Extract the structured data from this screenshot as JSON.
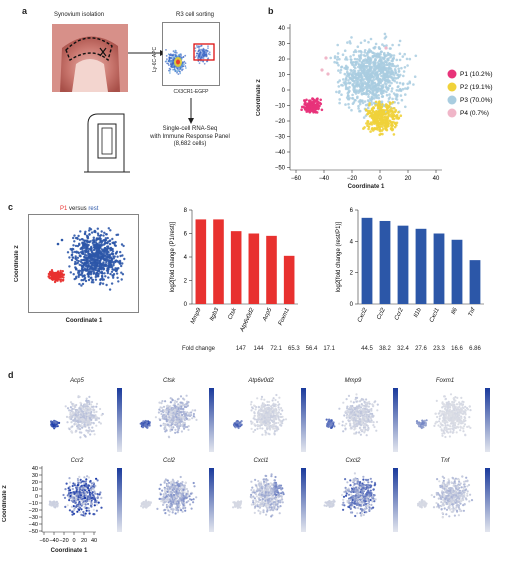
{
  "panels": {
    "a": {
      "letter": "a",
      "synovium_title": "Synovium isolation",
      "sorting_title": "R3 cell sorting",
      "y_axis_label": "Ly-6C-APC",
      "x_axis_label": "CX3CR1-EGFP",
      "seq_line1": "Single-cell RNA-Seq",
      "seq_line2": "with Immune Response Panel",
      "seq_line3": "(8,682 cells)"
    },
    "b": {
      "letter": "b",
      "xlabel": "Coordinate 1",
      "ylabel": "Coordinate 2",
      "x_ticks": [
        "−60",
        "−40",
        "−20",
        "0",
        "20",
        "40"
      ],
      "y_ticks": [
        "40",
        "30",
        "20",
        "10",
        "0",
        "−10",
        "−20",
        "−30",
        "−40",
        "−50"
      ],
      "legend": [
        {
          "label": "P1 (10.2%)",
          "color": "#e8337a"
        },
        {
          "label": "P2 (19.1%)",
          "color": "#f0d23a"
        },
        {
          "label": "P3 (70.0%)",
          "color": "#a9cde0"
        },
        {
          "label": "P4 (0.7%)",
          "color": "#f0b6c8"
        }
      ]
    },
    "c": {
      "letter": "c",
      "title_p1": "P1",
      "title_versus": " versus ",
      "title_rest": "rest",
      "xlabel": "Coordinate 1",
      "ylabel": "Coordinate 2",
      "fold_change_label": "Fold change",
      "left_ylabel": "log2[fold change (P1/rest)]",
      "right_ylabel": "log2[fold change (rest/P1)]"
    },
    "d": {
      "letter": "d",
      "genes_row1": [
        "Acp5",
        "Ctsk",
        "Atp6v0d2",
        "Mmp9",
        "Foxm1"
      ],
      "genes_row2": [
        "Ccr2",
        "Ccl2",
        "Cxcl1",
        "Cxcl2",
        "Tnf"
      ],
      "xlabel": "Coordinate 1",
      "ylabel": "Coordinate 2",
      "x_ticks": [
        "−60",
        "−40",
        "−20",
        "0",
        "20",
        "40"
      ],
      "y_ticks": [
        "40",
        "30",
        "20",
        "10",
        "0",
        "−10",
        "−20",
        "−30",
        "−40",
        "−50"
      ]
    }
  },
  "chart_data": [
    {
      "type": "bar",
      "categories": [
        "Mmp9",
        "Itgb3",
        "Ctsk",
        "Atp6v0d2",
        "Acp5",
        "Foxm1"
      ],
      "values": [
        7.2,
        7.2,
        6.2,
        6.0,
        5.8,
        4.1
      ],
      "fold_change": [
        "147",
        "144",
        "72.1",
        "65.3",
        "56.4",
        "17.1"
      ],
      "ylim": [
        0,
        8
      ],
      "y_ticks": [
        "0",
        "2",
        "4",
        "6",
        "8"
      ],
      "color": "#e8312f"
    },
    {
      "type": "bar",
      "categories": [
        "Cxcl2",
        "Ccl2",
        "Ccr2",
        "Il1b",
        "Cxcl1",
        "Il6",
        "Tnf"
      ],
      "values": [
        5.5,
        5.3,
        5.0,
        4.8,
        4.5,
        4.1,
        2.8
      ],
      "fold_change": [
        "44.5",
        "38.2",
        "32.4",
        "27.6",
        "23.3",
        "16.6",
        "6.86"
      ],
      "ylim": [
        0,
        6
      ],
      "y_ticks": [
        "0",
        "2",
        "4",
        "6"
      ],
      "color": "#2c57a8"
    }
  ]
}
